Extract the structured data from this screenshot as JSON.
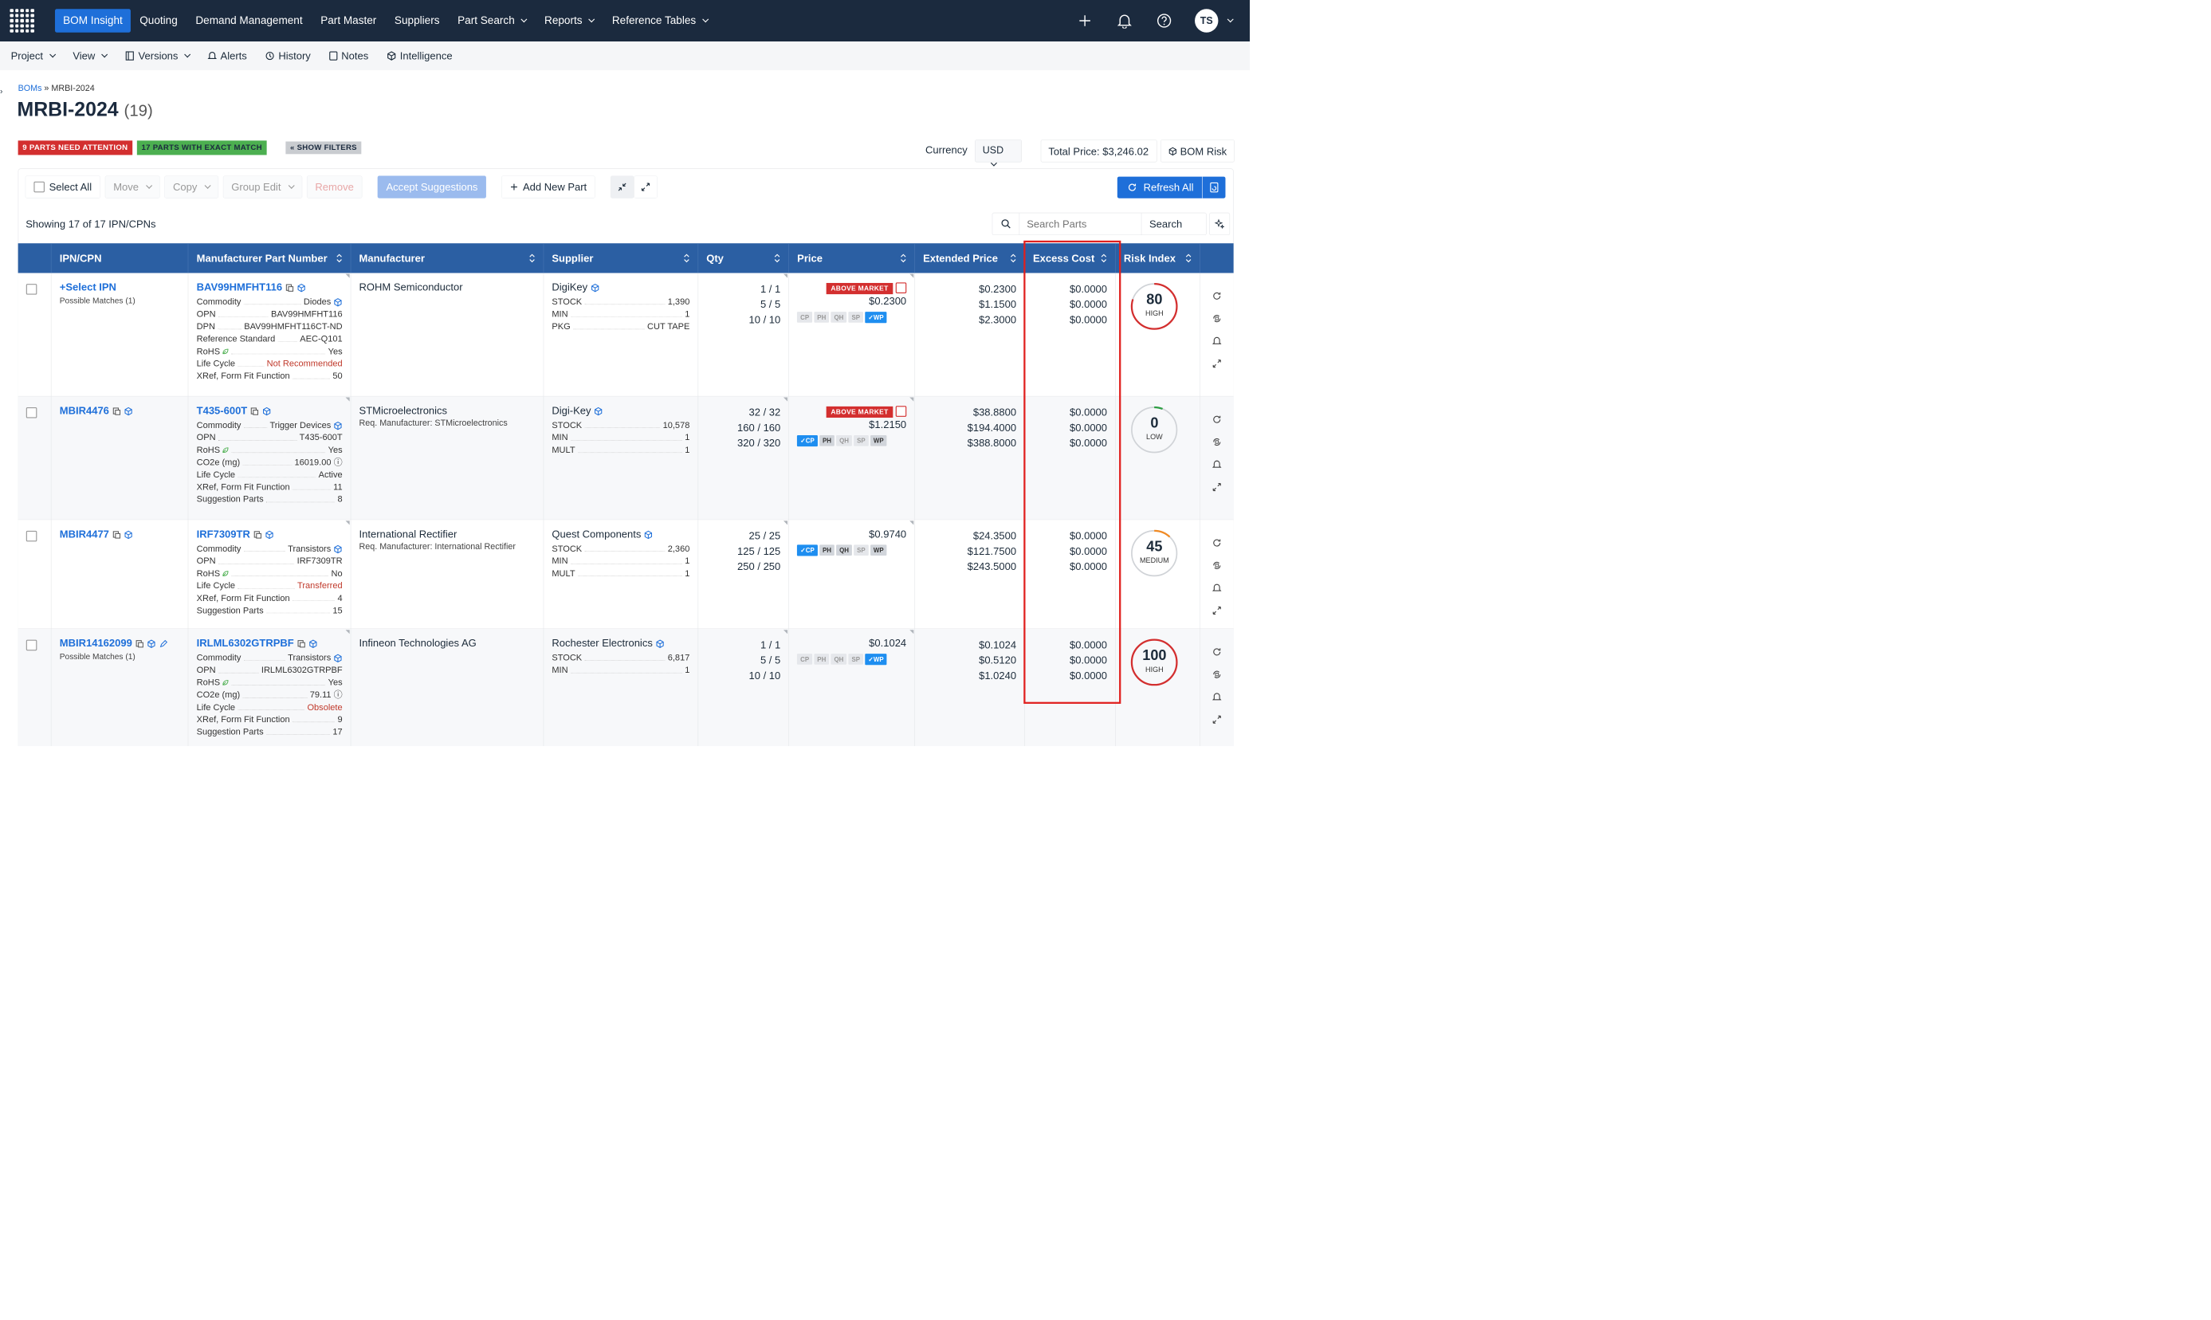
{
  "nav": {
    "items": [
      {
        "label": "BOM Insight",
        "active": true
      },
      {
        "label": "Quoting"
      },
      {
        "label": "Demand Management"
      },
      {
        "label": "Part Master"
      },
      {
        "label": "Suppliers"
      },
      {
        "label": "Part Search",
        "dropdown": true
      },
      {
        "label": "Reports",
        "dropdown": true
      },
      {
        "label": "Reference Tables",
        "dropdown": true
      }
    ],
    "avatar": "TS",
    "icons": [
      "plus-icon",
      "bell-icon",
      "help-icon"
    ]
  },
  "subnav": {
    "project": "Project",
    "view": "View",
    "versions": "Versions",
    "alerts": "Alerts",
    "history": "History",
    "notes": "Notes",
    "intelligence": "Intelligence"
  },
  "breadcrumb": {
    "root": "BOMs",
    "sep": "»",
    "current": "MRBI-2024"
  },
  "page": {
    "title": "MRBI-2024",
    "count": "(19)"
  },
  "badges": {
    "attention": "9 PARTS NEED ATTENTION",
    "exact": "17 PARTS WITH EXACT MATCH",
    "filters": "« SHOW FILTERS"
  },
  "summary": {
    "currency_label": "Currency",
    "currency": "USD",
    "total_price": "Total Price: $3,246.02",
    "bom_risk": "BOM Risk"
  },
  "toolbar": {
    "select_all": "Select All",
    "move": "Move",
    "copy": "Copy",
    "group_edit": "Group Edit",
    "remove": "Remove",
    "accept": "Accept Suggestions",
    "add_part": "Add New Part",
    "refresh_all": "Refresh All"
  },
  "list": {
    "showing": "Showing 17 of 17 IPN/CPNs",
    "search_placeholder": "Search Parts",
    "search_button": "Search"
  },
  "columns": [
    "IPN/CPN",
    "Manufacturer Part Number",
    "Manufacturer",
    "Supplier",
    "Qty",
    "Price",
    "Extended Price",
    "Excess Cost",
    "Risk Index"
  ],
  "rows": [
    {
      "ipn": "+Select IPN",
      "ipn_sub": "Possible Matches (1)",
      "mpn": "BAV99HMFHT116",
      "mpn_attrs": [
        {
          "k": "Commodity",
          "v": "Diodes"
        },
        {
          "k": "OPN",
          "v": "BAV99HMFHT116"
        },
        {
          "k": "DPN",
          "v": "BAV99HMFHT116CT-ND"
        },
        {
          "k": "Reference Standard",
          "v": "AEC-Q101"
        },
        {
          "k": "RoHS",
          "v": "Yes"
        },
        {
          "k": "Life Cycle",
          "v": "Not Recommended",
          "red": true
        },
        {
          "k": "XRef, Form Fit Function",
          "v": "50"
        }
      ],
      "manufacturer": "ROHM Semiconductor",
      "manufacturer_sub": "",
      "supplier": "DigiKey",
      "supplier_attrs": [
        {
          "k": "STOCK",
          "v": "1,390"
        },
        {
          "k": "MIN",
          "v": "1"
        },
        {
          "k": "PKG",
          "v": "CUT TAPE"
        }
      ],
      "qty": [
        "1 / 1",
        "5 / 5",
        "10 / 10"
      ],
      "above_market": "ABOVE MARKET",
      "price": "$0.2300",
      "chips": [
        {
          "t": "CP"
        },
        {
          "t": "PH"
        },
        {
          "t": "QH"
        },
        {
          "t": "SP"
        },
        {
          "t": "✓WP",
          "on": true
        }
      ],
      "extended": [
        "$0.2300",
        "$1.1500",
        "$2.3000"
      ],
      "excess": [
        "$0.0000",
        "$0.0000",
        "$0.0000"
      ],
      "risk": {
        "value": "80",
        "level": "HIGH",
        "fraction": 0.8,
        "color": "#d32f2f"
      }
    },
    {
      "ipn": "MBIR4476",
      "ipn_sub": "",
      "mpn": "T435-600T",
      "mpn_attrs": [
        {
          "k": "Commodity",
          "v": "Trigger Devices"
        },
        {
          "k": "OPN",
          "v": "T435-600T"
        },
        {
          "k": "RoHS",
          "v": "Yes"
        },
        {
          "k": "CO2e (mg)",
          "v": "16019.00"
        },
        {
          "k": "Life Cycle",
          "v": "Active"
        },
        {
          "k": "XRef, Form Fit Function",
          "v": "11"
        },
        {
          "k": "Suggestion Parts",
          "v": "8"
        }
      ],
      "manufacturer": "STMicroelectronics",
      "manufacturer_sub": "Req. Manufacturer: STMicroelectronics",
      "supplier": "Digi-Key",
      "supplier_attrs": [
        {
          "k": "STOCK",
          "v": "10,578"
        },
        {
          "k": "MIN",
          "v": "1"
        },
        {
          "k": "MULT",
          "v": "1"
        }
      ],
      "qty": [
        "32 / 32",
        "160 / 160",
        "320 / 320"
      ],
      "above_market": "ABOVE MARKET",
      "price": "$1.2150",
      "chips": [
        {
          "t": "✓CP",
          "on": true
        },
        {
          "t": "PH",
          "dk": true
        },
        {
          "t": "QH"
        },
        {
          "t": "SP"
        },
        {
          "t": "WP",
          "dk": true
        }
      ],
      "extended": [
        "$38.8800",
        "$194.4000",
        "$388.8000"
      ],
      "excess": [
        "$0.0000",
        "$0.0000",
        "$0.0000"
      ],
      "risk": {
        "value": "0",
        "level": "LOW",
        "fraction": 0.06,
        "color": "#2e9e44"
      }
    },
    {
      "ipn": "MBIR4477",
      "ipn_sub": "",
      "mpn": "IRF7309TR",
      "mpn_attrs": [
        {
          "k": "Commodity",
          "v": "Transistors"
        },
        {
          "k": "OPN",
          "v": "IRF7309TR"
        },
        {
          "k": "RoHS",
          "v": "No"
        },
        {
          "k": "Life Cycle",
          "v": "Transferred",
          "red": true
        },
        {
          "k": "XRef, Form Fit Function",
          "v": "4"
        },
        {
          "k": "Suggestion Parts",
          "v": "15"
        }
      ],
      "manufacturer": "International Rectifier",
      "manufacturer_sub": "Req. Manufacturer: International Rectifier",
      "supplier": "Quest Components",
      "supplier_attrs": [
        {
          "k": "STOCK",
          "v": "2,360"
        },
        {
          "k": "MIN",
          "v": "1"
        },
        {
          "k": "MULT",
          "v": "1"
        }
      ],
      "qty": [
        "25 / 25",
        "125 / 125",
        "250 / 250"
      ],
      "above_market": "",
      "price": "$0.9740",
      "chips": [
        {
          "t": "✓CP",
          "on": true
        },
        {
          "t": "PH",
          "dk": true
        },
        {
          "t": "QH",
          "dk": true
        },
        {
          "t": "SP"
        },
        {
          "t": "WP",
          "dk": true
        }
      ],
      "extended": [
        "$24.3500",
        "$121.7500",
        "$243.5000"
      ],
      "excess": [
        "$0.0000",
        "$0.0000",
        "$0.0000"
      ],
      "risk": {
        "value": "45",
        "level": "MEDIUM",
        "fraction": 0.12,
        "color": "#f08a24"
      }
    },
    {
      "ipn": "MBIR14162099",
      "ipn_sub": "Possible Matches (1)",
      "mpn": "IRLML6302GTRPBF",
      "mpn_attrs": [
        {
          "k": "Commodity",
          "v": "Transistors"
        },
        {
          "k": "OPN",
          "v": "IRLML6302GTRPBF"
        },
        {
          "k": "RoHS",
          "v": "Yes"
        },
        {
          "k": "CO2e (mg)",
          "v": "79.11"
        },
        {
          "k": "Life Cycle",
          "v": "Obsolete",
          "red": true
        },
        {
          "k": "XRef, Form Fit Function",
          "v": "9"
        },
        {
          "k": "Suggestion Parts",
          "v": "17"
        }
      ],
      "manufacturer": "Infineon Technologies AG",
      "manufacturer_sub": "",
      "supplier": "Rochester Electronics",
      "supplier_attrs": [
        {
          "k": "STOCK",
          "v": "6,817"
        },
        {
          "k": "MIN",
          "v": "1"
        }
      ],
      "qty": [
        "1 / 1",
        "5 / 5",
        "10 / 10"
      ],
      "above_market": "",
      "price": "$0.1024",
      "chips": [
        {
          "t": "CP"
        },
        {
          "t": "PH"
        },
        {
          "t": "QH"
        },
        {
          "t": "SP"
        },
        {
          "t": "✓WP",
          "on": true
        }
      ],
      "extended": [
        "$0.1024",
        "$0.5120",
        "$1.0240"
      ],
      "excess": [
        "$0.0000",
        "$0.0000",
        "$0.0000"
      ],
      "risk": {
        "value": "100",
        "level": "HIGH",
        "fraction": 1.0,
        "color": "#d32f2f"
      }
    }
  ],
  "colors": {
    "navbar": "#1b2a3e",
    "accent": "#1e6fd9",
    "header": "#2b5fa3",
    "attention": "#d32f2f",
    "exact": "#4caf50",
    "highlight": "#e0201e"
  }
}
